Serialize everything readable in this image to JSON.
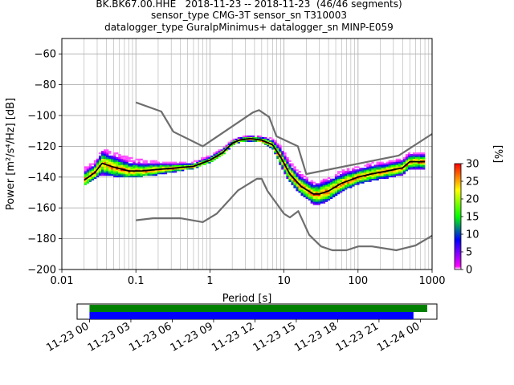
{
  "title": {
    "line1": "BK.BK67.00.HHE   2018-11-23 -- 2018-11-23  (46/46 segments)",
    "line2": "sensor_type CMG-3T sensor_sn T310003",
    "line3": "datalogger_type GuralpMinimus+ datalogger_sn MINP-E059"
  },
  "chart_data": [
    {
      "type": "heatmap",
      "xlabel": "Period [s]",
      "ylabel": "Power [m²/s⁴/Hz] [dB]",
      "xscale": "log",
      "xlim": [
        0.01,
        1000
      ],
      "ylim": [
        -200,
        -50
      ],
      "xticks": [
        {
          "value": 0.01,
          "label": "0.01"
        },
        {
          "value": 0.1,
          "label": "0.1"
        },
        {
          "value": 1,
          "label": "1"
        },
        {
          "value": 10,
          "label": "10"
        },
        {
          "value": 100,
          "label": "100"
        },
        {
          "value": 1000,
          "label": "1000"
        }
      ],
      "yticks": [
        -60,
        -80,
        -100,
        -120,
        -140,
        -160,
        -180,
        -200
      ],
      "grid": true,
      "colorbar": {
        "label": "[%]",
        "min": 0,
        "max": 30,
        "ticks": [
          0,
          5,
          10,
          15,
          20,
          25,
          30
        ],
        "colors": [
          "#ffffff",
          "#ff00ff",
          "#0000ff",
          "#00ff00",
          "#ffff00",
          "#ff0000"
        ]
      },
      "series": [
        {
          "style": "noise-model-high",
          "color": "#6e6e6e",
          "x": [
            0.1,
            0.22,
            0.32,
            0.8,
            3.8,
            4.6,
            6.3,
            7.9,
            15.4,
            20,
            354.8,
            1000
          ],
          "y": [
            -91.5,
            -97.4,
            -110.5,
            -120,
            -98,
            -96.5,
            -101,
            -113.5,
            -120,
            -138,
            -126,
            -112
          ]
        },
        {
          "style": "noise-model-low",
          "color": "#6e6e6e",
          "x": [
            0.1,
            0.17,
            0.4,
            0.8,
            1.24,
            2.4,
            4.3,
            5,
            6,
            10,
            12,
            15.6,
            21.9,
            31.6,
            45,
            70,
            101,
            154,
            328,
            600,
            1000
          ],
          "y": [
            -168,
            -166.7,
            -166.7,
            -169.2,
            -163.7,
            -148.6,
            -141.1,
            -141.1,
            -149,
            -163.8,
            -166.2,
            -162.1,
            -177.5,
            -185,
            -187.5,
            -187.5,
            -185,
            -185,
            -187.5,
            -184.4,
            -178
          ]
        },
        {
          "style": "median",
          "color": "#000000",
          "x": [
            0.02,
            0.028,
            0.035,
            0.05,
            0.08,
            0.12,
            0.2,
            0.35,
            0.6,
            1,
            1.5,
            2,
            2.5,
            3.5,
            5,
            7,
            9,
            12,
            17,
            25,
            30,
            40,
            60,
            100,
            150,
            250,
            400,
            500,
            800
          ],
          "y": [
            -142,
            -137,
            -131,
            -133.5,
            -136,
            -136,
            -135,
            -134,
            -133,
            -129,
            -124,
            -118,
            -116,
            -115,
            -116,
            -119,
            -127,
            -138,
            -146,
            -151,
            -151,
            -149,
            -144,
            -140,
            -138,
            -136,
            -134,
            -130,
            -130
          ]
        }
      ],
      "density_band": {
        "x": [
          0.02,
          0.028,
          0.035,
          0.05,
          0.08,
          0.12,
          0.2,
          0.35,
          0.6,
          1,
          1.5,
          2,
          2.5,
          3.5,
          5,
          7,
          9,
          12,
          17,
          25,
          30,
          40,
          60,
          100,
          150,
          250,
          400,
          500,
          800
        ],
        "upper": [
          -134,
          -130,
          -122,
          -124,
          -127,
          -129,
          -130,
          -131,
          -130,
          -126,
          -121,
          -116,
          -114,
          -113,
          -113,
          -115,
          -120,
          -130,
          -138,
          -143,
          -143,
          -140,
          -136,
          -133,
          -131,
          -130,
          -128,
          -124,
          -124
        ],
        "lower": [
          -146,
          -142,
          -139,
          -140,
          -140,
          -140,
          -139,
          -137,
          -135,
          -131,
          -126,
          -120,
          -118,
          -117,
          -118,
          -122,
          -133,
          -144,
          -152,
          -158,
          -159,
          -156,
          -150,
          -145,
          -143,
          -141,
          -139,
          -135,
          -135
        ]
      }
    },
    {
      "type": "timeline",
      "xticks": [
        "11-23 00",
        "11-23 03",
        "11-23 06",
        "11-23 09",
        "11-23 12",
        "11-23 15",
        "11-23 18",
        "11-23 21",
        "11-24 00"
      ],
      "xrange_hours": [
        -0.9,
        25.2
      ],
      "bars": [
        {
          "color": "#008000",
          "start_hour": 0,
          "end_hour": 24.5
        },
        {
          "color": "#0000ff",
          "start_hour": 0,
          "end_hour": 23.5
        }
      ]
    }
  ]
}
